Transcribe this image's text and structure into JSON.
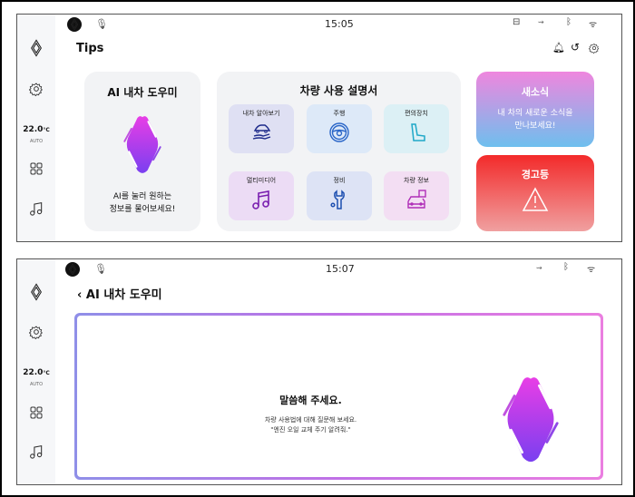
{
  "screen1": {
    "status": {
      "time": "15:05",
      "icons": [
        "renault-logo-icon",
        "mic-icon",
        "usb-icon",
        "connect-icon",
        "bluetooth-icon",
        "signal-icon"
      ]
    },
    "sidebar": {
      "temperature": "22.0",
      "unit": "°C",
      "mode": "AUTO"
    },
    "title": "Tips",
    "header_icons": [
      "bell-icon",
      "history-icon",
      "gear-icon"
    ],
    "ai_card": {
      "title": "AI 내차 도우미",
      "line1": "AI를 눌러 원하는",
      "line2": "정보를 물어보세요!"
    },
    "manual": {
      "title": "차량 사용 설명서",
      "tiles": [
        {
          "label": "내차 알아보기",
          "icon": "car-hand-icon",
          "color": "#dfe0f3"
        },
        {
          "label": "주행",
          "icon": "steering-wheel-icon",
          "color": "#dde9f8"
        },
        {
          "label": "편의장치",
          "icon": "seat-icon",
          "color": "#dcf0f5"
        },
        {
          "label": "멀티미디어",
          "icon": "music-icon",
          "color": "#ecdcf5"
        },
        {
          "label": "정비",
          "icon": "wrench-icon",
          "color": "#dde3f5"
        },
        {
          "label": "차량 정보",
          "icon": "car-info-icon",
          "color": "#f3def3"
        }
      ]
    },
    "news": {
      "title": "새소식",
      "line1": "내 차의 새로운 소식을",
      "line2": "만나보세요!"
    },
    "warning": {
      "title": "경고등"
    }
  },
  "screen2": {
    "status": {
      "time": "15:07"
    },
    "sidebar": {
      "temperature": "22.0",
      "unit": "°C",
      "mode": "AUTO"
    },
    "back_title": "AI 내차 도우미",
    "prompt": "말씀해 주세요.",
    "hint1": "차량 사용법에 대해 질문해 보세요.",
    "hint2": "\"엔진 오일 교체 주기 알려줘.\""
  },
  "colors": {
    "accent_pink": "#e040e8",
    "accent_purple": "#7a3ff0",
    "warning_red": "#f32a2a",
    "news_top": "#ef86de",
    "news_bottom": "#6ebfee"
  }
}
